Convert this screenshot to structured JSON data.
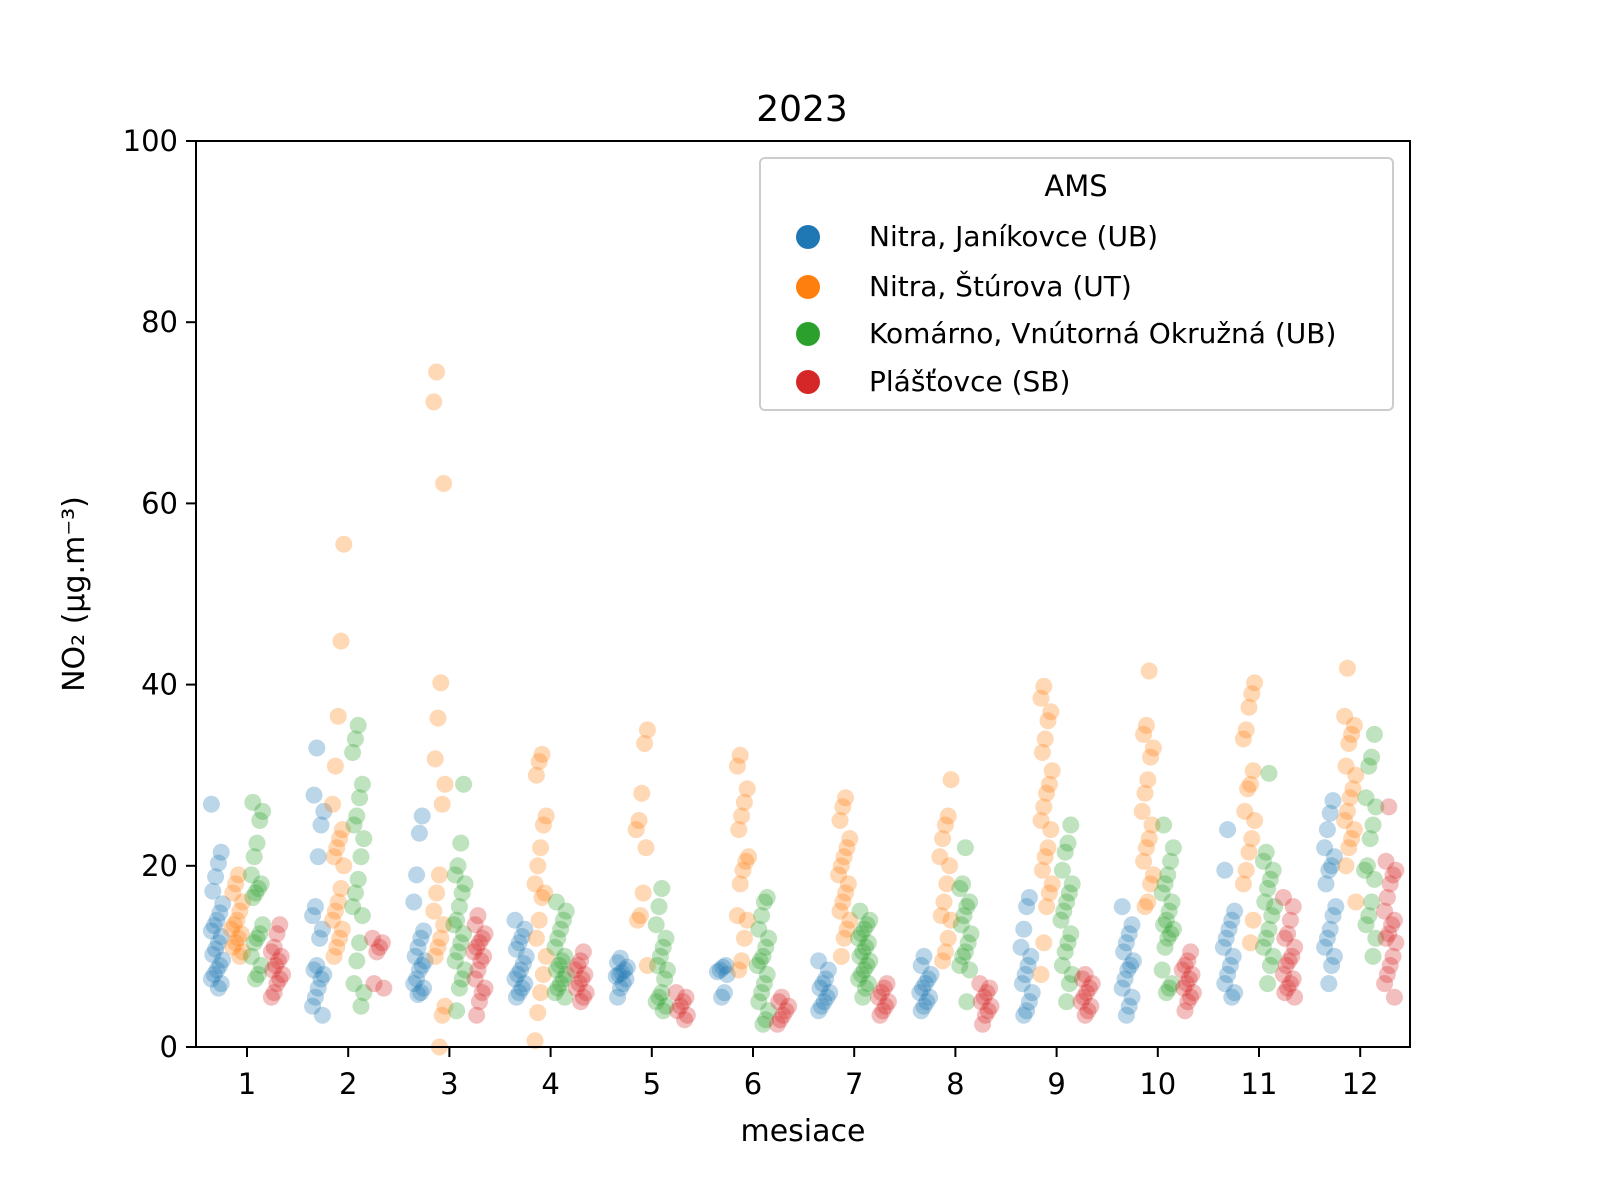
{
  "chart_data": {
    "type": "scatter",
    "title": "2023",
    "xlabel": "mesiace",
    "ylabel": "NO₂   (μg.m⁻³)",
    "ylim": [
      0,
      100
    ],
    "yticks": [
      0,
      20,
      40,
      60,
      80,
      100
    ],
    "categories": [
      "1",
      "2",
      "3",
      "4",
      "5",
      "6",
      "7",
      "8",
      "9",
      "10",
      "11",
      "12"
    ],
    "legend": {
      "title": "AMS",
      "placement": "top-right"
    },
    "grid": false,
    "point_alpha": 0.3,
    "series": [
      {
        "name": "Nitra, Janíkovce (UB)",
        "color": "#1f77b4",
        "values": [
          [
            26.8,
            21.5,
            20.3,
            18.8,
            17.2,
            15.8,
            14.8,
            14.0,
            13.4,
            12.8,
            12.2,
            11.5,
            10.8,
            10.2,
            9.6,
            9.0,
            8.5,
            8.0,
            7.5,
            7.0,
            6.5
          ],
          [
            33.0,
            27.8,
            26.0,
            24.5,
            21.0,
            15.5,
            14.5,
            13.0,
            12.0,
            9.0,
            8.5,
            8.0,
            7.5,
            6.5,
            5.5,
            4.5,
            3.5
          ],
          [
            25.5,
            23.6,
            19.0,
            16.0,
            12.8,
            12.0,
            11.0,
            10.0,
            9.5,
            9.0,
            8.5,
            7.5,
            7.0,
            6.5,
            6.0,
            5.8
          ],
          [
            14.0,
            13.0,
            12.2,
            11.5,
            10.8,
            10.0,
            9.2,
            8.5,
            8.0,
            7.5,
            7.0,
            6.5,
            6.0,
            5.5
          ],
          [
            9.8,
            9.3,
            8.8,
            8.5,
            8.2,
            8.0,
            7.8,
            7.5,
            7.0,
            6.5,
            5.5
          ],
          [
            9.0,
            8.8,
            8.5,
            8.3,
            8.0,
            6.0,
            5.5
          ],
          [
            9.5,
            8.5,
            7.5,
            7.0,
            6.5,
            6.0,
            5.5,
            5.0,
            4.5,
            4.0
          ],
          [
            10.0,
            9.0,
            8.0,
            7.5,
            7.0,
            6.5,
            6.0,
            5.5,
            5.0,
            4.5,
            4.0
          ],
          [
            16.5,
            15.5,
            13.0,
            11.0,
            10.0,
            9.0,
            8.0,
            7.0,
            6.0,
            5.0,
            4.0,
            3.5
          ],
          [
            15.5,
            13.5,
            12.5,
            11.5,
            10.5,
            9.5,
            9.0,
            8.5,
            7.5,
            6.5,
            5.5,
            4.5,
            3.5
          ],
          [
            24.0,
            19.5,
            15.0,
            14.0,
            13.0,
            12.0,
            11.0,
            10.0,
            9.0,
            8.0,
            7.0,
            6.0,
            5.5
          ],
          [
            27.2,
            25.8,
            24.0,
            22.0,
            21.0,
            20.0,
            19.5,
            18.0,
            15.5,
            14.5,
            13.0,
            12.0,
            11.0,
            10.0,
            9.0,
            7.0
          ]
        ]
      },
      {
        "name": "Nitra, Štúrova (UT)",
        "color": "#ff7f0e",
        "values": [
          [
            19.0,
            18.0,
            17.0,
            16.0,
            15.0,
            14.0,
            13.5,
            13.0,
            12.5,
            12.0,
            11.5,
            11.0,
            10.5,
            10.0
          ],
          [
            55.5,
            44.8,
            36.5,
            31.0,
            26.8,
            24.0,
            23.0,
            22.0,
            21.0,
            20.0,
            17.5,
            16.0,
            15.0,
            14.0,
            13.0,
            12.0,
            11.0,
            10.0
          ],
          [
            74.5,
            71.2,
            62.2,
            40.2,
            36.3,
            31.8,
            29.0,
            26.8,
            19.0,
            17.0,
            15.0,
            13.5,
            12.0,
            11.0,
            10.0,
            4.5,
            3.5,
            0.0
          ],
          [
            32.3,
            31.5,
            30.0,
            25.5,
            24.5,
            22.0,
            20.0,
            18.0,
            17.0,
            16.5,
            14.0,
            12.0,
            10.0,
            8.0,
            6.0,
            3.8,
            0.7
          ],
          [
            35.0,
            33.5,
            28.0,
            25.0,
            24.0,
            22.0,
            17.0,
            14.5,
            14.0,
            9.0
          ],
          [
            32.2,
            31.0,
            28.5,
            27.0,
            25.5,
            24.0,
            21.0,
            20.5,
            19.5,
            18.0,
            14.5,
            14.0,
            12.0,
            9.5,
            8.5
          ],
          [
            27.5,
            26.5,
            25.0,
            23.0,
            22.0,
            21.0,
            20.0,
            19.0,
            18.0,
            17.0,
            16.0,
            15.0,
            14.0,
            13.0,
            12.0,
            10.0
          ],
          [
            29.5,
            25.5,
            24.5,
            23.0,
            21.0,
            20.0,
            18.0,
            16.0,
            14.5,
            14.0,
            12.0,
            10.5,
            9.5
          ],
          [
            39.8,
            38.5,
            37.0,
            36.0,
            34.0,
            32.5,
            30.5,
            29.0,
            28.0,
            26.5,
            25.0,
            24.0,
            22.0,
            21.0,
            19.5,
            18.0,
            17.0,
            15.5,
            11.5,
            8.0
          ],
          [
            41.5,
            35.5,
            34.5,
            33.0,
            32.0,
            29.5,
            28.0,
            26.0,
            24.5,
            23.0,
            22.0,
            20.5,
            19.0,
            18.0,
            16.0,
            15.5
          ],
          [
            40.2,
            39.0,
            37.5,
            35.0,
            34.0,
            30.5,
            29.0,
            28.5,
            26.0,
            25.0,
            23.0,
            21.5,
            19.5,
            18.0,
            14.0,
            11.5
          ],
          [
            41.8,
            36.5,
            35.5,
            34.5,
            33.5,
            31.0,
            30.0,
            28.5,
            27.5,
            26.0,
            25.0,
            24.0,
            23.0,
            22.0,
            20.0,
            16.0
          ]
        ]
      },
      {
        "name": "Komárno, Vnútorná Okružná (UB)",
        "color": "#2ca02c",
        "values": [
          [
            27.0,
            26.0,
            25.0,
            22.5,
            21.0,
            19.0,
            18.0,
            17.5,
            17.0,
            16.5,
            13.5,
            12.5,
            12.0,
            11.5,
            10.0,
            9.0,
            8.0,
            7.5
          ],
          [
            35.5,
            34.0,
            32.5,
            29.0,
            27.5,
            25.5,
            24.5,
            23.0,
            21.0,
            18.5,
            17.0,
            15.5,
            14.5,
            11.5,
            9.5,
            7.0,
            6.0,
            4.5
          ],
          [
            29.0,
            22.5,
            20.0,
            19.0,
            18.0,
            17.0,
            15.5,
            14.0,
            13.5,
            12.5,
            11.5,
            10.5,
            9.5,
            8.5,
            7.5,
            6.5,
            4.0
          ],
          [
            16.0,
            15.0,
            14.0,
            13.0,
            12.0,
            11.0,
            10.0,
            9.5,
            9.0,
            8.5,
            8.0,
            7.5,
            7.0,
            6.5,
            6.0,
            5.5
          ],
          [
            17.5,
            15.5,
            13.5,
            12.0,
            11.0,
            10.0,
            9.0,
            8.5,
            7.5,
            6.0,
            5.5,
            5.0,
            4.5,
            4.0
          ],
          [
            16.5,
            16.0,
            14.5,
            13.0,
            12.0,
            11.0,
            10.0,
            9.5,
            9.0,
            8.0,
            7.0,
            6.0,
            5.0,
            4.0,
            3.0,
            2.5
          ],
          [
            15.0,
            14.0,
            13.5,
            13.0,
            12.5,
            12.0,
            11.5,
            11.0,
            10.5,
            10.0,
            9.5,
            9.0,
            8.5,
            8.0,
            7.5,
            7.0,
            6.5,
            5.5
          ],
          [
            22.0,
            18.0,
            17.5,
            16.0,
            15.5,
            14.5,
            13.5,
            12.5,
            11.5,
            10.5,
            10.0,
            9.0,
            8.5,
            5.0
          ],
          [
            24.5,
            22.5,
            21.5,
            19.5,
            18.0,
            17.0,
            16.0,
            15.0,
            14.0,
            12.5,
            11.5,
            10.5,
            9.0,
            8.0,
            7.0,
            5.0
          ],
          [
            24.5,
            22.0,
            20.5,
            19.0,
            18.0,
            17.0,
            16.0,
            15.0,
            14.0,
            13.5,
            13.0,
            12.5,
            12.0,
            11.0,
            8.5,
            7.0,
            6.5,
            6.0
          ],
          [
            30.2,
            21.5,
            20.5,
            19.5,
            18.5,
            17.5,
            16.0,
            15.5,
            14.5,
            13.0,
            12.0,
            11.0,
            10.0,
            9.0,
            7.0
          ],
          [
            34.5,
            32.0,
            31.0,
            27.5,
            26.5,
            24.5,
            23.0,
            20.0,
            19.5,
            18.5,
            16.0,
            14.5,
            13.5,
            12.0,
            10.0
          ]
        ]
      },
      {
        "name": "Plášťovce (SB)",
        "color": "#d62728",
        "values": [
          [
            13.5,
            12.5,
            11.0,
            10.5,
            10.0,
            9.5,
            9.0,
            8.5,
            8.0,
            7.5,
            7.0,
            6.0,
            5.5
          ],
          [
            12.0,
            11.5,
            11.0,
            10.5,
            7.0,
            6.5
          ],
          [
            14.5,
            13.5,
            12.5,
            12.0,
            11.5,
            11.0,
            10.5,
            10.0,
            9.5,
            8.5,
            7.5,
            6.5,
            6.0,
            5.0,
            3.5
          ],
          [
            10.5,
            9.5,
            9.0,
            8.5,
            8.0,
            7.5,
            7.0,
            6.5,
            6.0,
            5.5,
            5.0
          ],
          [
            6.0,
            5.5,
            5.0,
            4.5,
            4.0,
            3.5,
            3.0
          ],
          [
            5.5,
            5.0,
            4.5,
            4.0,
            3.5,
            3.0,
            2.5
          ],
          [
            7.0,
            6.5,
            6.0,
            5.5,
            5.0,
            4.5,
            4.0,
            3.5
          ],
          [
            7.0,
            6.5,
            6.0,
            5.5,
            5.0,
            4.5,
            4.0,
            3.5,
            2.5
          ],
          [
            8.0,
            7.5,
            7.0,
            6.5,
            6.0,
            5.5,
            5.0,
            4.5,
            4.0,
            3.5
          ],
          [
            10.5,
            9.5,
            9.0,
            8.5,
            8.0,
            7.5,
            7.0,
            6.5,
            6.0,
            5.5,
            5.0,
            4.0
          ],
          [
            16.5,
            15.5,
            14.0,
            12.5,
            12.0,
            11.0,
            10.0,
            9.5,
            9.0,
            8.0,
            7.5,
            7.0,
            6.5,
            6.0,
            5.5
          ],
          [
            26.5,
            20.5,
            19.5,
            19.0,
            18.0,
            16.5,
            15.0,
            14.0,
            13.5,
            12.5,
            12.0,
            11.5,
            10.0,
            9.0,
            8.0,
            7.0,
            5.5
          ]
        ]
      }
    ]
  }
}
